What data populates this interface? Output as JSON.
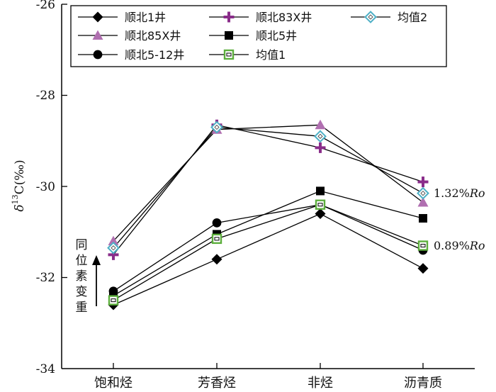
{
  "chart_data": {
    "type": "line",
    "ylabel_parts": [
      "δ",
      "13",
      "C(‰)"
    ],
    "ylim": [
      -34,
      -26
    ],
    "yticks": [
      "-26",
      "-28",
      "-30",
      "-32",
      "-34"
    ],
    "categories": [
      "饱和烃",
      "芳香烃",
      "非烃",
      "沥青质"
    ],
    "series": [
      {
        "name": "顺北1井",
        "marker": "diamond",
        "color": "#000000",
        "values": [
          -32.6,
          -31.6,
          -30.6,
          -31.8
        ]
      },
      {
        "name": "顺北85X井",
        "marker": "triangle",
        "color": "#b06fb0",
        "values": [
          -31.2,
          -28.75,
          -28.65,
          -30.35
        ]
      },
      {
        "name": "顺北5-12井",
        "marker": "circle",
        "color": "#000000",
        "values": [
          -32.3,
          -30.8,
          -30.4,
          -31.4
        ]
      },
      {
        "name": "顺北83X井",
        "marker": "plus",
        "color": "#8a2d8a",
        "values": [
          -31.5,
          -28.65,
          -29.15,
          -29.9
        ]
      },
      {
        "name": "顺北5井",
        "marker": "square",
        "color": "#000000",
        "values": [
          -32.4,
          -31.05,
          -30.1,
          -30.7
        ]
      },
      {
        "name": "均值1",
        "marker": "hollow-square",
        "color": "#5cae3c",
        "values": [
          -32.5,
          -31.15,
          -30.4,
          -31.3
        ]
      },
      {
        "name": "均值2",
        "marker": "hollow-diamond",
        "color": "#4fb0c6",
        "values": [
          -31.35,
          -28.7,
          -28.9,
          -30.15
        ]
      }
    ],
    "annotations": {
      "high": {
        "prefix": "1.32%",
        "italic": "Ro"
      },
      "low": {
        "prefix": "0.89%",
        "italic": "Ro"
      }
    },
    "arrow_label_chars": [
      "同",
      "位",
      "素",
      "变",
      "重"
    ],
    "grid": false,
    "legend_position": "top"
  }
}
